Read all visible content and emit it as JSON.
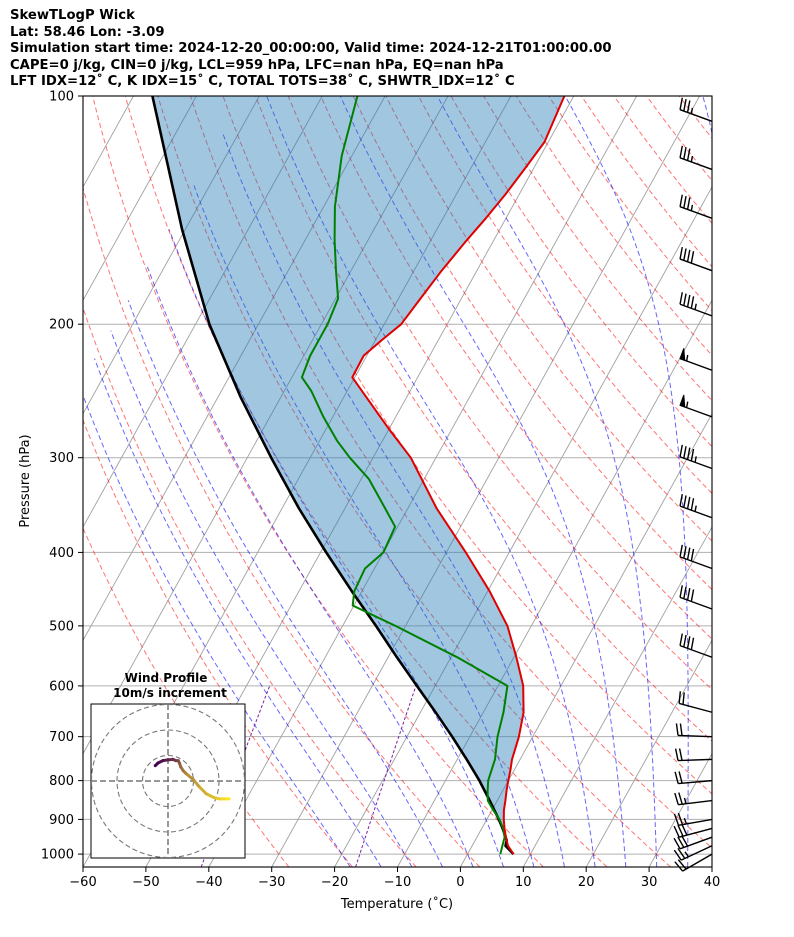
{
  "header": {
    "title": "SkewTLogP Wick",
    "location": "Lat: 58.46   Lon: -3.09",
    "times": "Simulation start time: 2024-12-20_00:00:00, Valid time: 2024-12-21T01:00:00.00",
    "indices1": "CAPE=0 j/kg, CIN=0 j/kg, LCL=959 hPa, LFC=nan hPa, EQ=nan hPa",
    "indices2": "LFT IDX=12˚ C, K IDX=15˚ C, TOTAL TOTS=38˚ C, SHWTR_IDX=12˚ C"
  },
  "chart_data": {
    "type": "skewt-logp",
    "xlabel": "Temperature (˚C)",
    "ylabel": "Pressure (hPa)",
    "xlim": [
      -60,
      40
    ],
    "ylim": [
      1040,
      100
    ],
    "x_ticks": [
      "−60",
      "−50",
      "−40",
      "−30",
      "−20",
      "−10",
      "0",
      "10",
      "20",
      "30",
      "40"
    ],
    "x_tick_values": [
      -60,
      -50,
      -40,
      -30,
      -20,
      -10,
      0,
      10,
      20,
      30,
      40
    ],
    "y_ticks": [
      "100",
      "200",
      "300",
      "400",
      "500",
      "600",
      "700",
      "800",
      "900",
      "1000"
    ],
    "y_tick_values": [
      100,
      200,
      300,
      400,
      500,
      600,
      700,
      800,
      900,
      1000
    ],
    "temperature": {
      "color": "#e00000",
      "points": [
        [
          1000,
          7.3
        ],
        [
          975,
          5.7
        ],
        [
          950,
          4.6
        ],
        [
          925,
          3.6
        ],
        [
          900,
          2.7
        ],
        [
          875,
          1.9
        ],
        [
          850,
          1.3
        ],
        [
          825,
          0.6
        ],
        [
          800,
          0.0
        ],
        [
          775,
          -0.6
        ],
        [
          750,
          -1.3
        ],
        [
          700,
          -2.2
        ],
        [
          650,
          -3.6
        ],
        [
          600,
          -6.0
        ],
        [
          550,
          -9.6
        ],
        [
          500,
          -13.8
        ],
        [
          450,
          -19.7
        ],
        [
          400,
          -26.9
        ],
        [
          350,
          -35.4
        ],
        [
          300,
          -44.0
        ],
        [
          275,
          -50.0
        ],
        [
          250,
          -56.3
        ],
        [
          235,
          -60.4
        ],
        [
          220,
          -60.5
        ],
        [
          210,
          -59.0
        ],
        [
          200,
          -57.3
        ],
        [
          185,
          -56.5
        ],
        [
          170,
          -55.6
        ],
        [
          155,
          -54.3
        ],
        [
          145,
          -53.2
        ],
        [
          135,
          -52.2
        ],
        [
          125,
          -51.4
        ],
        [
          115,
          -50.6
        ],
        [
          100,
          -51.5
        ]
      ]
    },
    "dewpoint": {
      "color": "#008000",
      "points": [
        [
          1000,
          5.2
        ],
        [
          975,
          4.8
        ],
        [
          950,
          4.4
        ],
        [
          925,
          3.4
        ],
        [
          900,
          2.0
        ],
        [
          875,
          0.2
        ],
        [
          850,
          -1.5
        ],
        [
          825,
          -2.4
        ],
        [
          800,
          -3.2
        ],
        [
          775,
          -3.6
        ],
        [
          750,
          -4.0
        ],
        [
          700,
          -5.6
        ],
        [
          650,
          -6.8
        ],
        [
          600,
          -8.5
        ],
        [
          550,
          -19.0
        ],
        [
          500,
          -31.6
        ],
        [
          470,
          -40.2
        ],
        [
          450,
          -41.2
        ],
        [
          420,
          -41.5
        ],
        [
          400,
          -40.0
        ],
        [
          370,
          -40.4
        ],
        [
          350,
          -43.6
        ],
        [
          320,
          -48.8
        ],
        [
          300,
          -53.7
        ],
        [
          285,
          -57.2
        ],
        [
          265,
          -61.5
        ],
        [
          245,
          -65.7
        ],
        [
          235,
          -68.4
        ],
        [
          220,
          -69.0
        ],
        [
          200,
          -69.0
        ],
        [
          185,
          -69.6
        ],
        [
          170,
          -72.4
        ],
        [
          155,
          -75.3
        ],
        [
          140,
          -78.2
        ],
        [
          120,
          -81.6
        ],
        [
          100,
          -84.4
        ]
      ]
    },
    "parcel": {
      "color": "#000000",
      "points": [
        [
          1000,
          7.3
        ],
        [
          975,
          5.3
        ],
        [
          959,
          5.0
        ],
        [
          925,
          3.3
        ],
        [
          900,
          1.9
        ],
        [
          850,
          -1.2
        ],
        [
          800,
          -4.6
        ],
        [
          750,
          -8.5
        ],
        [
          700,
          -12.8
        ],
        [
          650,
          -17.6
        ],
        [
          600,
          -22.9
        ],
        [
          550,
          -28.6
        ],
        [
          500,
          -34.7
        ],
        [
          450,
          -41.6
        ],
        [
          400,
          -49.1
        ],
        [
          350,
          -57.3
        ],
        [
          300,
          -66.2
        ],
        [
          250,
          -76.3
        ],
        [
          200,
          -87.8
        ],
        [
          150,
          -100.5
        ],
        [
          100,
          -117.0
        ]
      ]
    },
    "cape_cin_fill": {
      "color": "#1f77b4",
      "label": "shaded area between parcel and temperature"
    },
    "isotherm_color": "#a0a0a0",
    "dry_adiabat_color": "#ff0000",
    "moist_adiabat_color": "#0000ff",
    "mixing_ratio_color": "#7b1fa2",
    "wind_barbs": [
      {
        "p": 1000,
        "speed_kt": 22,
        "dir": 240
      },
      {
        "p": 975,
        "speed_kt": 27,
        "dir": 245
      },
      {
        "p": 950,
        "speed_kt": 30,
        "dir": 250
      },
      {
        "p": 925,
        "speed_kt": 30,
        "dir": 255
      },
      {
        "p": 900,
        "speed_kt": 27,
        "dir": 260
      },
      {
        "p": 850,
        "speed_kt": 25,
        "dir": 263
      },
      {
        "p": 800,
        "speed_kt": 22,
        "dir": 265
      },
      {
        "p": 750,
        "speed_kt": 20,
        "dir": 268
      },
      {
        "p": 700,
        "speed_kt": 20,
        "dir": 272
      },
      {
        "p": 650,
        "speed_kt": 20,
        "dir": 285
      },
      {
        "p": 550,
        "speed_kt": 40,
        "dir": 290
      },
      {
        "p": 475,
        "speed_kt": 40,
        "dir": 290
      },
      {
        "p": 420,
        "speed_kt": 40,
        "dir": 290
      },
      {
        "p": 360,
        "speed_kt": 45,
        "dir": 290
      },
      {
        "p": 310,
        "speed_kt": 45,
        "dir": 290
      },
      {
        "p": 265,
        "speed_kt": 55,
        "dir": 290
      },
      {
        "p": 230,
        "speed_kt": 55,
        "dir": 290
      },
      {
        "p": 195,
        "speed_kt": 45,
        "dir": 290
      },
      {
        "p": 170,
        "speed_kt": 40,
        "dir": 290
      },
      {
        "p": 145,
        "speed_kt": 35,
        "dir": 290
      },
      {
        "p": 125,
        "speed_kt": 35,
        "dir": 290
      },
      {
        "p": 108,
        "speed_kt": 35,
        "dir": 290
      }
    ],
    "hodograph": {
      "title": "Wind Profile",
      "subtitle": "10m/s increment",
      "rings_ms": [
        10,
        20,
        30
      ],
      "points_uv": [
        [
          24,
          -7
        ],
        [
          22,
          -7
        ],
        [
          20,
          -7
        ],
        [
          18,
          -6.5
        ],
        [
          15,
          -5
        ],
        [
          12,
          -2
        ],
        [
          10,
          0.5
        ],
        [
          7,
          3
        ],
        [
          6,
          4
        ],
        [
          5,
          5.5
        ],
        [
          4.5,
          7
        ],
        [
          4,
          8
        ],
        [
          3,
          8
        ],
        [
          2,
          8.5
        ],
        [
          0,
          8.3
        ],
        [
          -2,
          8
        ],
        [
          -4,
          7
        ],
        [
          -5,
          6
        ]
      ]
    }
  }
}
